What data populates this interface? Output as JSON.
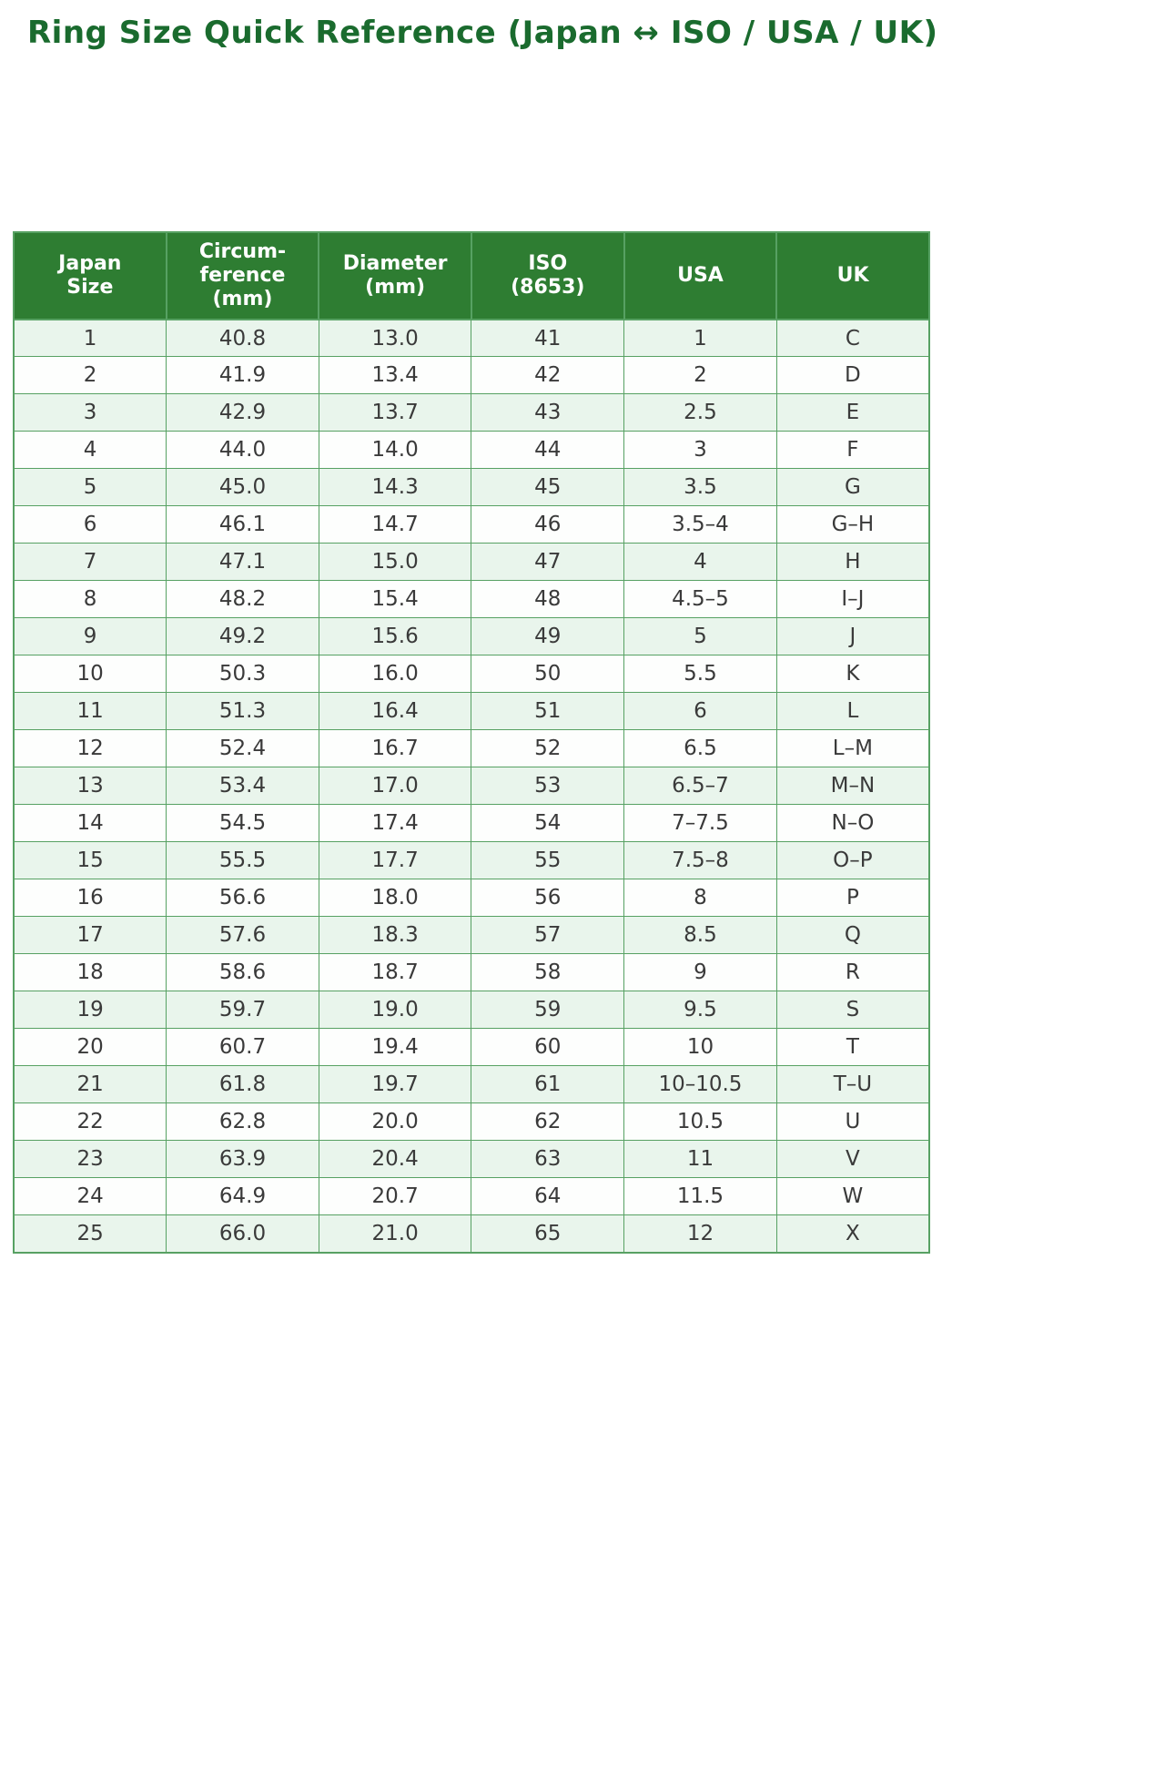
{
  "page": {
    "title": "Ring Size Quick Reference (Japan ↔ ISO / USA / UK)"
  },
  "colors": {
    "title": "#1a6b2e",
    "header_bg": "#2e7d32",
    "header_text": "#ffffff",
    "row_alt": "#e9f5ec",
    "row_base": "#fdfefd",
    "border": "#57a163",
    "body_text": "#3a3a3a"
  },
  "chart_data": {
    "type": "table",
    "title": "Ring Size Quick Reference (Japan ↔ ISO / USA / UK)",
    "columns": [
      "Japan\nSize",
      "Circum-\nference\n(mm)",
      "Diameter\n(mm)",
      "ISO\n(8653)",
      "USA",
      "UK"
    ],
    "rows": [
      [
        "1",
        "40.8",
        "13.0",
        "41",
        "1",
        "C"
      ],
      [
        "2",
        "41.9",
        "13.4",
        "42",
        "2",
        "D"
      ],
      [
        "3",
        "42.9",
        "13.7",
        "43",
        "2.5",
        "E"
      ],
      [
        "4",
        "44.0",
        "14.0",
        "44",
        "3",
        "F"
      ],
      [
        "5",
        "45.0",
        "14.3",
        "45",
        "3.5",
        "G"
      ],
      [
        "6",
        "46.1",
        "14.7",
        "46",
        "3.5–4",
        "G–H"
      ],
      [
        "7",
        "47.1",
        "15.0",
        "47",
        "4",
        "H"
      ],
      [
        "8",
        "48.2",
        "15.4",
        "48",
        "4.5–5",
        "I–J"
      ],
      [
        "9",
        "49.2",
        "15.6",
        "49",
        "5",
        "J"
      ],
      [
        "10",
        "50.3",
        "16.0",
        "50",
        "5.5",
        "K"
      ],
      [
        "11",
        "51.3",
        "16.4",
        "51",
        "6",
        "L"
      ],
      [
        "12",
        "52.4",
        "16.7",
        "52",
        "6.5",
        "L–M"
      ],
      [
        "13",
        "53.4",
        "17.0",
        "53",
        "6.5–7",
        "M–N"
      ],
      [
        "14",
        "54.5",
        "17.4",
        "54",
        "7–7.5",
        "N–O"
      ],
      [
        "15",
        "55.5",
        "17.7",
        "55",
        "7.5–8",
        "O–P"
      ],
      [
        "16",
        "56.6",
        "18.0",
        "56",
        "8",
        "P"
      ],
      [
        "17",
        "57.6",
        "18.3",
        "57",
        "8.5",
        "Q"
      ],
      [
        "18",
        "58.6",
        "18.7",
        "58",
        "9",
        "R"
      ],
      [
        "19",
        "59.7",
        "19.0",
        "59",
        "9.5",
        "S"
      ],
      [
        "20",
        "60.7",
        "19.4",
        "60",
        "10",
        "T"
      ],
      [
        "21",
        "61.8",
        "19.7",
        "61",
        "10–10.5",
        "T–U"
      ],
      [
        "22",
        "62.8",
        "20.0",
        "62",
        "10.5",
        "U"
      ],
      [
        "23",
        "63.9",
        "20.4",
        "63",
        "11",
        "V"
      ],
      [
        "24",
        "64.9",
        "20.7",
        "64",
        "11.5",
        "W"
      ],
      [
        "25",
        "66.0",
        "21.0",
        "65",
        "12",
        "X"
      ]
    ]
  }
}
